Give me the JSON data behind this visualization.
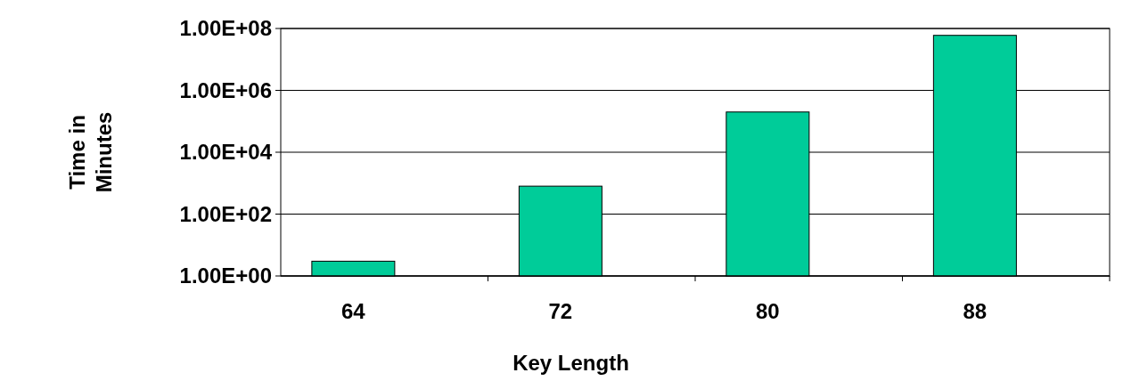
{
  "chart_data": {
    "type": "bar",
    "categories": [
      "64",
      "72",
      "80",
      "88"
    ],
    "values": [
      3,
      800,
      200000,
      60000000
    ],
    "color": "#00cc99",
    "log": true,
    "ylim": [
      1,
      100000000
    ],
    "yticks": [
      {
        "value": 1,
        "label": "1.00E+00"
      },
      {
        "value": 100,
        "label": "1.00E+02"
      },
      {
        "value": 10000,
        "label": "1.00E+04"
      },
      {
        "value": 1000000,
        "label": "1.00E+06"
      },
      {
        "value": 100000000,
        "label": "1.00E+08"
      }
    ],
    "grid": "y",
    "xlabel": "Key Length",
    "ylabel": "Time in Minutes"
  }
}
